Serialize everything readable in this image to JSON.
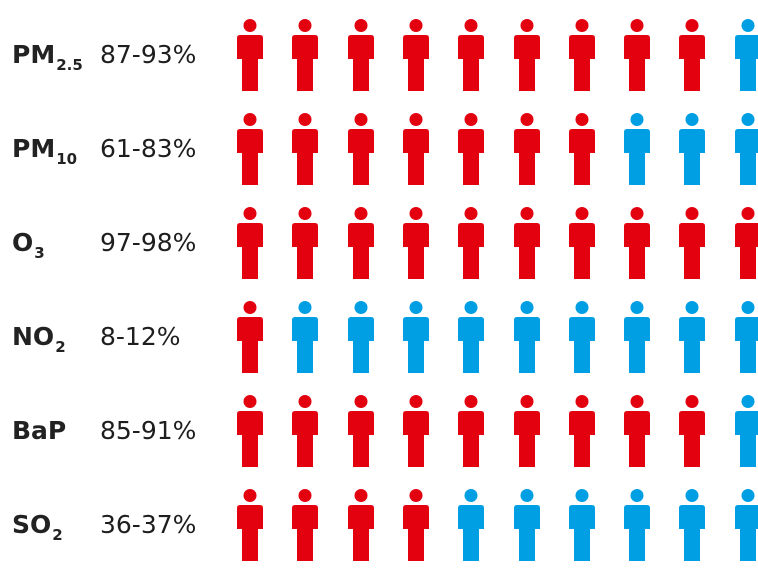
{
  "chart_data": {
    "type": "pictogram",
    "icons_per_row": 10,
    "colors": {
      "exposed": "#e3000f",
      "not_exposed": "#009fe3"
    },
    "rows": [
      {
        "pollutant": "PM",
        "subscript": "2.5",
        "range": "87-93%",
        "exposed_icons": 9
      },
      {
        "pollutant": "PM",
        "subscript": "10",
        "range": "61-83%",
        "exposed_icons": 7
      },
      {
        "pollutant": "O",
        "subscript": "3",
        "range": "97-98%",
        "exposed_icons": 10
      },
      {
        "pollutant": "NO",
        "subscript": "2",
        "range": "8-12%",
        "exposed_icons": 1
      },
      {
        "pollutant": "BaP",
        "subscript": "",
        "range": "85-91%",
        "exposed_icons": 9
      },
      {
        "pollutant": "SO",
        "subscript": "2",
        "range": "36-37%",
        "exposed_icons": 4
      }
    ]
  }
}
